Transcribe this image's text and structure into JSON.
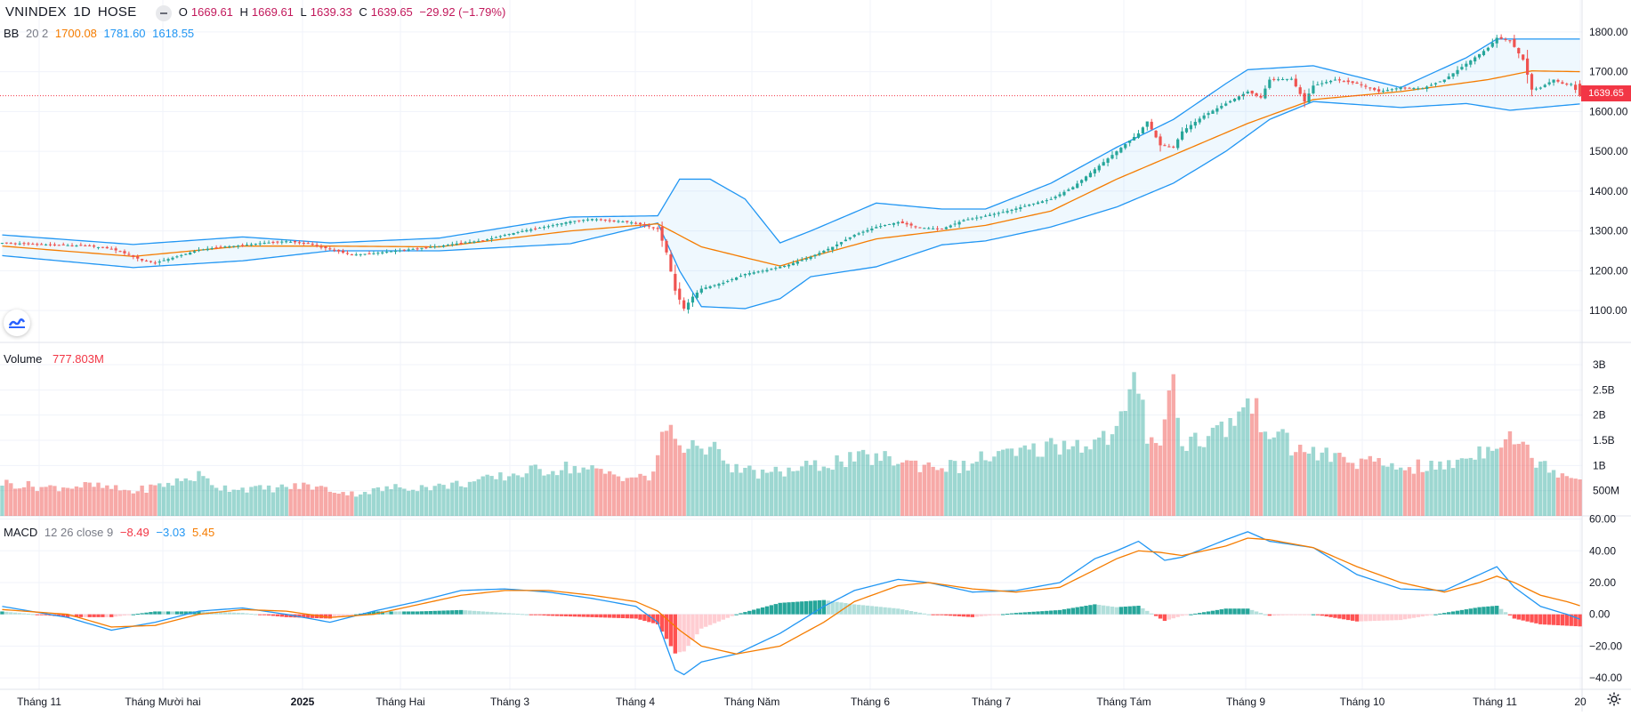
{
  "header": {
    "symbol": "VNINDEX",
    "interval": "1D",
    "exchange": "HOSE",
    "o_label": "O",
    "o": "1669.61",
    "h_label": "H",
    "h": "1669.61",
    "l_label": "L",
    "l": "1639.33",
    "c_label": "C",
    "c": "1639.65",
    "change": "−29.92 (−1.79%)"
  },
  "bb_legend": {
    "name": "BB",
    "params": "20 2",
    "basis": "1700.08",
    "upper": "1781.60",
    "lower": "1618.55"
  },
  "volume_legend": {
    "name": "Volume",
    "value": "777.803M"
  },
  "macd_legend": {
    "name": "MACD",
    "params": "12 26 close 9",
    "hist": "−8.49",
    "macd": "−3.03",
    "signal": "5.45"
  },
  "last_price_tag": "1639.65",
  "colors": {
    "up": "#26a69a",
    "down": "#ef5350",
    "bb_band": "#2196f3",
    "bb_basis": "#f57c00",
    "macd": "#2196f3",
    "signal": "#f57c00"
  },
  "chart_data": {
    "type": "candlestick",
    "symbol": "VNINDEX",
    "price_axis": {
      "ticks": [
        "1100.00",
        "1200.00",
        "1300.00",
        "1400.00",
        "1500.00",
        "1600.00",
        "1700.00",
        "1800.00"
      ],
      "ylim": [
        1020,
        1880
      ]
    },
    "volume_axis": {
      "ticks": [
        "500M",
        "1B",
        "1.5B",
        "2B",
        "2.5B",
        "3B"
      ],
      "ylim": [
        0,
        3.0
      ]
    },
    "macd_axis": {
      "ticks": [
        "60.00",
        "40.00",
        "20.00",
        "0.00",
        "−20.00",
        "−40.00"
      ],
      "ylim": [
        -45,
        62
      ]
    },
    "time_axis": {
      "labels": [
        "Tháng 11",
        "Tháng Mười hai",
        "2025",
        "Tháng Hai",
        "Tháng 3",
        "Tháng 4",
        "Tháng Năm",
        "Tháng 6",
        "Tháng 7",
        "Tháng Tám",
        "Tháng 9",
        "Tháng 10",
        "Tháng 11",
        "20"
      ],
      "bold": [
        "2025"
      ]
    },
    "close_series": [
      [
        0,
        1270
      ],
      [
        20,
        1262
      ],
      [
        25,
        1255
      ],
      [
        29,
        1240
      ],
      [
        32,
        1226
      ],
      [
        35,
        1220
      ],
      [
        40,
        1236
      ],
      [
        45,
        1252
      ],
      [
        50,
        1260
      ],
      [
        54,
        1263
      ],
      [
        60,
        1270
      ],
      [
        65,
        1274
      ],
      [
        70,
        1268
      ],
      [
        75,
        1254
      ],
      [
        80,
        1240
      ],
      [
        85,
        1244
      ],
      [
        90,
        1250
      ],
      [
        95,
        1256
      ],
      [
        100,
        1262
      ],
      [
        105,
        1270
      ],
      [
        110,
        1276
      ],
      [
        115,
        1290
      ],
      [
        120,
        1302
      ],
      [
        125,
        1312
      ],
      [
        130,
        1324
      ],
      [
        135,
        1330
      ],
      [
        140,
        1326
      ],
      [
        145,
        1320
      ],
      [
        150,
        1305
      ],
      [
        152,
        1246
      ],
      [
        154,
        1150
      ],
      [
        156,
        1105
      ],
      [
        158,
        1135
      ],
      [
        160,
        1155
      ],
      [
        165,
        1170
      ],
      [
        170,
        1192
      ],
      [
        175,
        1202
      ],
      [
        180,
        1215
      ],
      [
        185,
        1235
      ],
      [
        190,
        1260
      ],
      [
        195,
        1290
      ],
      [
        200,
        1310
      ],
      [
        205,
        1322
      ],
      [
        210,
        1308
      ],
      [
        215,
        1305
      ],
      [
        220,
        1327
      ],
      [
        225,
        1338
      ],
      [
        230,
        1350
      ],
      [
        235,
        1366
      ],
      [
        240,
        1380
      ],
      [
        245,
        1410
      ],
      [
        250,
        1455
      ],
      [
        255,
        1500
      ],
      [
        260,
        1545
      ],
      [
        262,
        1575
      ],
      [
        265,
        1515
      ],
      [
        268,
        1510
      ],
      [
        270,
        1550
      ],
      [
        275,
        1590
      ],
      [
        280,
        1620
      ],
      [
        285,
        1650
      ],
      [
        288,
        1635
      ],
      [
        290,
        1680
      ],
      [
        295,
        1682
      ],
      [
        298,
        1625
      ],
      [
        300,
        1665
      ],
      [
        305,
        1680
      ],
      [
        310,
        1670
      ],
      [
        315,
        1650
      ],
      [
        320,
        1660
      ],
      [
        325,
        1658
      ],
      [
        330,
        1680
      ],
      [
        335,
        1720
      ],
      [
        340,
        1760
      ],
      [
        342,
        1785
      ],
      [
        345,
        1778
      ],
      [
        348,
        1730
      ],
      [
        350,
        1655
      ],
      [
        352,
        1660
      ],
      [
        355,
        1680
      ],
      [
        357,
        1670
      ],
      [
        359,
        1669
      ],
      [
        361,
        1639.65
      ]
    ],
    "bb": {
      "basis": [
        [
          0,
          1262
        ],
        [
          30,
          1236
        ],
        [
          55,
          1262
        ],
        [
          75,
          1262
        ],
        [
          100,
          1260
        ],
        [
          130,
          1300
        ],
        [
          150,
          1318
        ],
        [
          160,
          1260
        ],
        [
          170,
          1233
        ],
        [
          178,
          1212
        ],
        [
          185,
          1235
        ],
        [
          200,
          1280
        ],
        [
          215,
          1300
        ],
        [
          225,
          1314
        ],
        [
          240,
          1350
        ],
        [
          255,
          1430
        ],
        [
          270,
          1500
        ],
        [
          285,
          1570
        ],
        [
          300,
          1630
        ],
        [
          320,
          1650
        ],
        [
          340,
          1680
        ],
        [
          350,
          1702
        ],
        [
          361,
          1700
        ]
      ],
      "upper": [
        [
          0,
          1290
        ],
        [
          30,
          1266
        ],
        [
          55,
          1285
        ],
        [
          75,
          1270
        ],
        [
          100,
          1282
        ],
        [
          130,
          1335
        ],
        [
          150,
          1338
        ],
        [
          155,
          1430
        ],
        [
          162,
          1430
        ],
        [
          170,
          1380
        ],
        [
          178,
          1270
        ],
        [
          185,
          1300
        ],
        [
          200,
          1370
        ],
        [
          215,
          1355
        ],
        [
          225,
          1355
        ],
        [
          240,
          1420
        ],
        [
          255,
          1510
        ],
        [
          268,
          1580
        ],
        [
          280,
          1670
        ],
        [
          285,
          1705
        ],
        [
          300,
          1715
        ],
        [
          320,
          1660
        ],
        [
          335,
          1735
        ],
        [
          342,
          1782
        ],
        [
          361,
          1782
        ]
      ],
      "lower": [
        [
          0,
          1238
        ],
        [
          30,
          1208
        ],
        [
          55,
          1225
        ],
        [
          75,
          1250
        ],
        [
          100,
          1250
        ],
        [
          130,
          1268
        ],
        [
          150,
          1320
        ],
        [
          155,
          1200
        ],
        [
          160,
          1110
        ],
        [
          170,
          1105
        ],
        [
          178,
          1130
        ],
        [
          185,
          1185
        ],
        [
          200,
          1210
        ],
        [
          215,
          1265
        ],
        [
          225,
          1275
        ],
        [
          240,
          1310
        ],
        [
          255,
          1360
        ],
        [
          268,
          1420
        ],
        [
          280,
          1500
        ],
        [
          290,
          1580
        ],
        [
          300,
          1625
        ],
        [
          320,
          1610
        ],
        [
          335,
          1620
        ],
        [
          345,
          1603
        ],
        [
          361,
          1619
        ]
      ]
    },
    "volume_b": [
      [
        0,
        0.68
      ],
      [
        10,
        0.58
      ],
      [
        20,
        0.62
      ],
      [
        30,
        0.5
      ],
      [
        40,
        0.7
      ],
      [
        45,
        0.82
      ],
      [
        50,
        0.58
      ],
      [
        60,
        0.55
      ],
      [
        70,
        0.62
      ],
      [
        80,
        0.45
      ],
      [
        90,
        0.58
      ],
      [
        100,
        0.6
      ],
      [
        110,
        0.72
      ],
      [
        120,
        0.9
      ],
      [
        130,
        1.0
      ],
      [
        140,
        0.85
      ],
      [
        148,
        0.75
      ],
      [
        150,
        1.2
      ],
      [
        152,
        1.85
      ],
      [
        154,
        1.6
      ],
      [
        156,
        1.3
      ],
      [
        158,
        1.7
      ],
      [
        160,
        1.2
      ],
      [
        162,
        1.65
      ],
      [
        165,
        1.0
      ],
      [
        175,
        0.85
      ],
      [
        185,
        1.0
      ],
      [
        190,
        1.1
      ],
      [
        200,
        1.2
      ],
      [
        210,
        1.05
      ],
      [
        220,
        1.0
      ],
      [
        225,
        1.2
      ],
      [
        235,
        1.3
      ],
      [
        240,
        1.45
      ],
      [
        250,
        1.5
      ],
      [
        255,
        1.7
      ],
      [
        260,
        2.8
      ],
      [
        262,
        1.7
      ],
      [
        265,
        1.55
      ],
      [
        268,
        2.8
      ],
      [
        270,
        1.5
      ],
      [
        275,
        1.6
      ],
      [
        280,
        1.8
      ],
      [
        285,
        2.3
      ],
      [
        290,
        1.8
      ],
      [
        295,
        1.4
      ],
      [
        300,
        1.3
      ],
      [
        310,
        1.1
      ],
      [
        320,
        1.0
      ],
      [
        330,
        1.0
      ],
      [
        335,
        1.2
      ],
      [
        340,
        1.4
      ],
      [
        342,
        1.55
      ],
      [
        345,
        1.7
      ],
      [
        350,
        1.2
      ],
      [
        355,
        0.95
      ],
      [
        361,
        0.78
      ]
    ],
    "macd_line": [
      [
        0,
        5
      ],
      [
        15,
        -2
      ],
      [
        25,
        -10
      ],
      [
        35,
        -5
      ],
      [
        45,
        2
      ],
      [
        55,
        4
      ],
      [
        65,
        0
      ],
      [
        75,
        -5
      ],
      [
        85,
        2
      ],
      [
        95,
        8
      ],
      [
        105,
        15
      ],
      [
        115,
        16
      ],
      [
        125,
        14
      ],
      [
        135,
        10
      ],
      [
        145,
        5
      ],
      [
        150,
        -5
      ],
      [
        152,
        -20
      ],
      [
        154,
        -35
      ],
      [
        156,
        -38
      ],
      [
        160,
        -30
      ],
      [
        168,
        -25
      ],
      [
        178,
        -12
      ],
      [
        188,
        5
      ],
      [
        195,
        15
      ],
      [
        205,
        22
      ],
      [
        212,
        20
      ],
      [
        222,
        14
      ],
      [
        232,
        15
      ],
      [
        242,
        20
      ],
      [
        250,
        35
      ],
      [
        255,
        40
      ],
      [
        260,
        46
      ],
      [
        263,
        40
      ],
      [
        266,
        34
      ],
      [
        270,
        36
      ],
      [
        280,
        47
      ],
      [
        285,
        52
      ],
      [
        290,
        46
      ],
      [
        300,
        42
      ],
      [
        310,
        25
      ],
      [
        320,
        16
      ],
      [
        330,
        15
      ],
      [
        338,
        25
      ],
      [
        342,
        30
      ],
      [
        346,
        17
      ],
      [
        352,
        5
      ],
      [
        358,
        0
      ],
      [
        361,
        -3.03
      ]
    ],
    "signal_line": [
      [
        0,
        3
      ],
      [
        15,
        0
      ],
      [
        25,
        -8
      ],
      [
        35,
        -7
      ],
      [
        45,
        0
      ],
      [
        55,
        3
      ],
      [
        65,
        2
      ],
      [
        75,
        -2
      ],
      [
        85,
        0
      ],
      [
        95,
        6
      ],
      [
        105,
        12
      ],
      [
        115,
        15
      ],
      [
        125,
        15
      ],
      [
        135,
        12
      ],
      [
        145,
        8
      ],
      [
        150,
        2
      ],
      [
        155,
        -10
      ],
      [
        160,
        -20
      ],
      [
        168,
        -25
      ],
      [
        178,
        -20
      ],
      [
        188,
        -5
      ],
      [
        195,
        8
      ],
      [
        205,
        18
      ],
      [
        212,
        20
      ],
      [
        222,
        16
      ],
      [
        232,
        14
      ],
      [
        242,
        17
      ],
      [
        250,
        28
      ],
      [
        255,
        35
      ],
      [
        260,
        40
      ],
      [
        265,
        39
      ],
      [
        270,
        37
      ],
      [
        280,
        43
      ],
      [
        285,
        48
      ],
      [
        290,
        47
      ],
      [
        300,
        42
      ],
      [
        310,
        30
      ],
      [
        320,
        20
      ],
      [
        330,
        14
      ],
      [
        338,
        20
      ],
      [
        342,
        24
      ],
      [
        346,
        20
      ],
      [
        352,
        12
      ],
      [
        358,
        8
      ],
      [
        361,
        5.45
      ]
    ],
    "macd_hist_last": -8.49
  }
}
